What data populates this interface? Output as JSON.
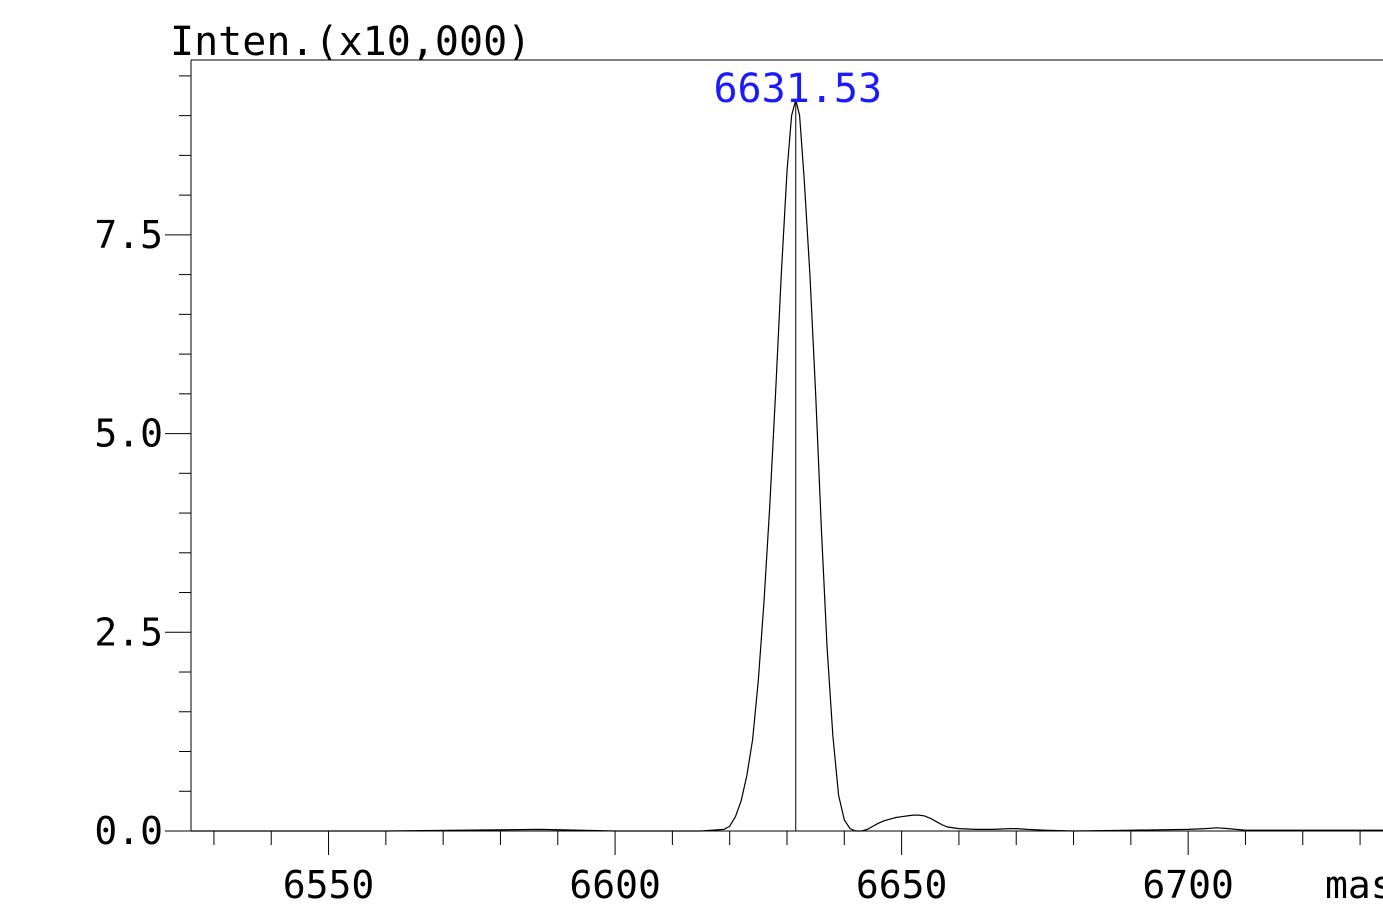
{
  "chart_data": {
    "type": "line",
    "ylabel": "Inten.(x10,000)",
    "xlabel": "mass",
    "xlim": [
      6526,
      6734
    ],
    "ylim": [
      0,
      9.7
    ],
    "x_ticks": [
      6550,
      6600,
      6650,
      6700
    ],
    "x_tick_labels": [
      "6550",
      "6600",
      "6650",
      "6700"
    ],
    "y_ticks": [
      0,
      2.5,
      5.0,
      7.5
    ],
    "y_tick_labels": [
      "0.0",
      "2.5",
      "5.0",
      "7.5"
    ],
    "grid": false,
    "peak_annotation": {
      "x": 6631.53,
      "y": 9.2,
      "label": "6631.53",
      "color": "#1a1aff"
    },
    "series": [
      {
        "x": [
          6526,
          6560,
          6587,
          6600,
          6615,
          6619,
          6620,
          6621,
          6622,
          6623,
          6624,
          6625,
          6626,
          6627,
          6628,
          6629,
          6630,
          6630.8,
          6631.53,
          6632.2,
          6633,
          6634,
          6635,
          6636,
          6637,
          6638,
          6639,
          6640,
          6641,
          6642,
          6643,
          6644,
          6645,
          6646,
          6647,
          6648,
          6649,
          6650,
          6651,
          6652,
          6653,
          6654,
          6655,
          6656,
          6657,
          6658,
          6660,
          6663,
          6666,
          6669,
          6670,
          6672,
          6675,
          6680,
          6690,
          6700,
          6703,
          6705,
          6707,
          6710,
          6720,
          6734
        ],
        "y": [
          0.0,
          0.0,
          0.02,
          0.0,
          0.0,
          0.02,
          0.06,
          0.18,
          0.38,
          0.7,
          1.15,
          1.9,
          2.9,
          4.1,
          5.5,
          7.0,
          8.3,
          9.0,
          9.2,
          9.0,
          8.2,
          7.0,
          5.5,
          3.8,
          2.3,
          1.2,
          0.45,
          0.14,
          0.03,
          0.0,
          0.0,
          0.02,
          0.06,
          0.1,
          0.13,
          0.15,
          0.17,
          0.18,
          0.19,
          0.2,
          0.2,
          0.19,
          0.16,
          0.12,
          0.08,
          0.05,
          0.03,
          0.02,
          0.02,
          0.03,
          0.03,
          0.02,
          0.01,
          0.0,
          0.01,
          0.02,
          0.03,
          0.04,
          0.03,
          0.01,
          0.01,
          0.01
        ]
      }
    ]
  }
}
